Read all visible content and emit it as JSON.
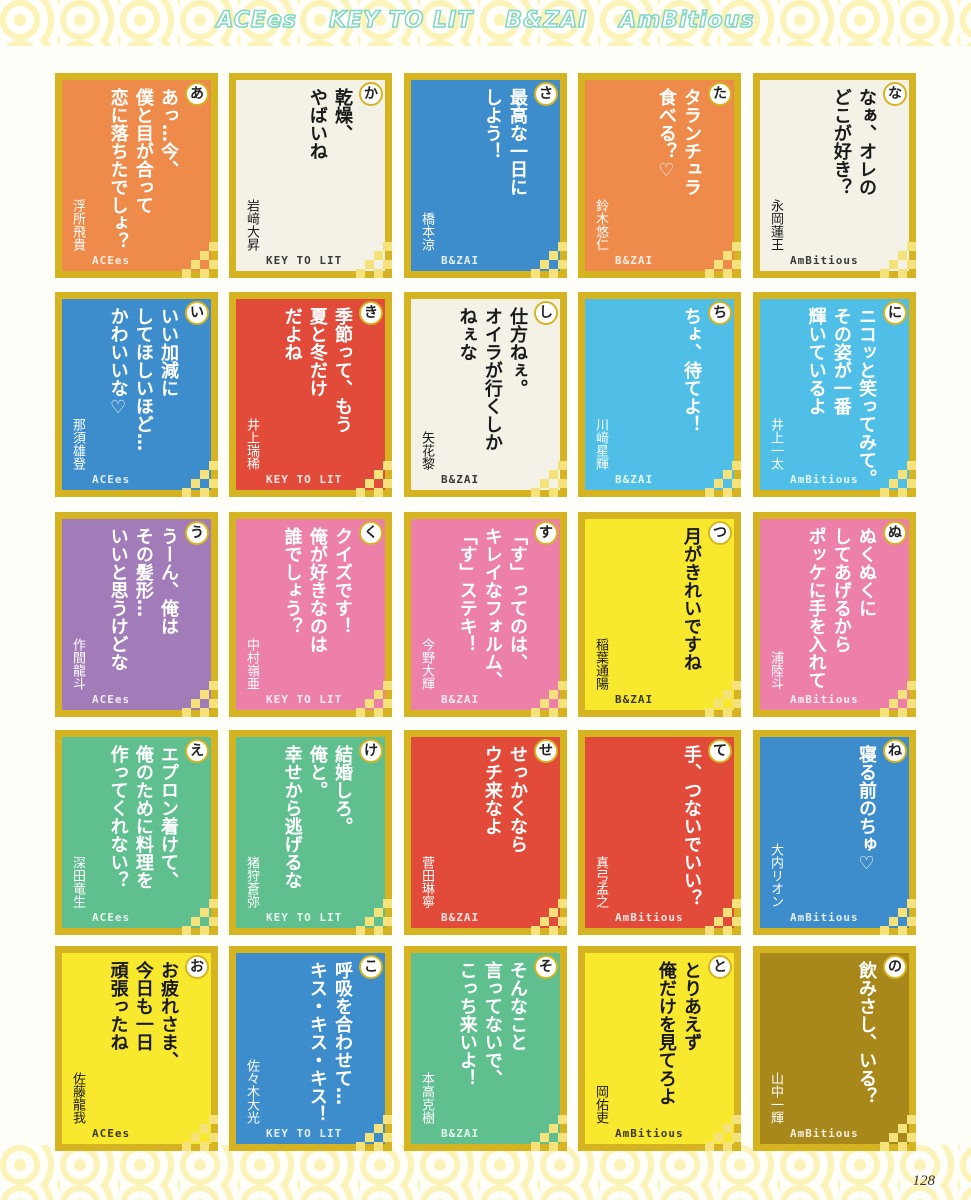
{
  "header": {
    "groups": [
      "ACEes",
      "KEY TO LIT",
      "B&ZAI",
      "AmBitious"
    ]
  },
  "cards": [
    {
      "kana": "あ",
      "lines": [
        "あっ…今、",
        "僕と目が合って",
        "恋に落ちたでしょ？"
      ],
      "name": "浮所飛貴",
      "group": "ACEes",
      "bg": "#ee8a4a",
      "ink": "#ffffff"
    },
    {
      "kana": "か",
      "lines": [
        "乾燥、",
        "やばいね"
      ],
      "name": "岩﨑大昇",
      "group": "KEY TO LIT",
      "bg": "#f4f1e6",
      "ink": "#1a1a1a"
    },
    {
      "kana": "さ",
      "lines": [
        "最高な一日に",
        "しよう！"
      ],
      "name": "橋本涼",
      "group": "B&ZAI",
      "bg": "#3d8dcc",
      "ink": "#ffffff"
    },
    {
      "kana": "た",
      "lines": [
        "タランチュラ",
        "食べる？♡"
      ],
      "name": "鈴木悠仁",
      "group": "B&ZAI",
      "bg": "#ee8a4a",
      "ink": "#ffffff"
    },
    {
      "kana": "な",
      "lines": [
        "なぁ、オレの",
        "どこが好き？"
      ],
      "name": "永岡蓮王",
      "group": "AmBitious",
      "bg": "#f4f1e6",
      "ink": "#1a1a1a"
    },
    {
      "kana": "い",
      "lines": [
        "いい加減に",
        "してほしいほど…",
        "かわいいな♡"
      ],
      "name": "那須雄登",
      "group": "ACEes",
      "bg": "#3d8dcc",
      "ink": "#ffffff"
    },
    {
      "kana": "き",
      "lines": [
        "季節って、もう",
        "夏と冬だけ",
        "だよね"
      ],
      "name": "井上瑞稀",
      "group": "KEY TO LIT",
      "bg": "#e24b3a",
      "ink": "#ffffff"
    },
    {
      "kana": "し",
      "lines": [
        "仕方ねぇ。",
        "オイラが行くしか",
        "ねぇな"
      ],
      "name": "矢花黎",
      "group": "B&ZAI",
      "bg": "#f4f1e6",
      "ink": "#1a1a1a"
    },
    {
      "kana": "ち",
      "lines": [
        "ちょ、待てよ！"
      ],
      "name": "川﨑星輝",
      "group": "B&ZAI",
      "bg": "#4fbfe8",
      "ink": "#ffffff"
    },
    {
      "kana": "に",
      "lines": [
        "ニコッと笑ってみて。",
        "その姿が一番",
        "輝いているよ"
      ],
      "name": "井上一太",
      "group": "AmBitious",
      "bg": "#4fbfe8",
      "ink": "#ffffff"
    },
    {
      "kana": "う",
      "lines": [
        "うーん、俺は",
        "その髪形…",
        "いいと思うけどな"
      ],
      "name": "作間龍斗",
      "group": "ACEes",
      "bg": "#a27bb9",
      "ink": "#ffffff"
    },
    {
      "kana": "く",
      "lines": [
        "クイズです！",
        "俺が好きなのは",
        "誰でしょう？"
      ],
      "name": "中村嶺亜",
      "group": "KEY TO LIT",
      "bg": "#ec80a8",
      "ink": "#ffffff"
    },
    {
      "kana": "す",
      "lines": [
        "「す」ってのは、",
        "キレイなフォルム、",
        "「す」ステキ！"
      ],
      "name": "今野大輝",
      "group": "B&ZAI",
      "bg": "#ec80a8",
      "ink": "#ffffff"
    },
    {
      "kana": "つ",
      "lines": [
        "月がきれいですね"
      ],
      "name": "稲葉通陽",
      "group": "B&ZAI",
      "bg": "#f9e92e",
      "ink": "#1a1a1a"
    },
    {
      "kana": "ぬ",
      "lines": [
        "ぬくぬくに",
        "してあげるから",
        "ポッケに手を入れて"
      ],
      "name": "浦陸斗",
      "group": "AmBitious",
      "bg": "#ec80a8",
      "ink": "#ffffff"
    },
    {
      "kana": "え",
      "lines": [
        "エプロン着けて、",
        "俺のために料理を",
        "作ってくれない？"
      ],
      "name": "深田竜生",
      "group": "ACEes",
      "bg": "#5fbf8f",
      "ink": "#ffffff"
    },
    {
      "kana": "け",
      "lines": [
        "結婚しろ。",
        "俺と。",
        "幸せから逃げるな"
      ],
      "name": "猪狩蒼弥",
      "group": "KEY TO LIT",
      "bg": "#5fbf8f",
      "ink": "#ffffff"
    },
    {
      "kana": "せ",
      "lines": [
        "せっかくなら",
        "ウチ来なよ"
      ],
      "name": "菅田琳寧",
      "group": "B&ZAI",
      "bg": "#e24b3a",
      "ink": "#ffffff"
    },
    {
      "kana": "て",
      "lines": [
        "手、つないでいい？"
      ],
      "name": "真弓孟之",
      "group": "AmBitious",
      "bg": "#e24b3a",
      "ink": "#ffffff"
    },
    {
      "kana": "ね",
      "lines": [
        "寝る前のちゅ♡"
      ],
      "name": "大内リオン",
      "group": "AmBitious",
      "bg": "#3d8dcc",
      "ink": "#ffffff"
    },
    {
      "kana": "お",
      "lines": [
        "お疲れさま、",
        "今日も一日",
        "頑張ったね"
      ],
      "name": "佐藤龍我",
      "group": "ACEes",
      "bg": "#f9e92e",
      "ink": "#1a1a1a"
    },
    {
      "kana": "こ",
      "lines": [
        "呼吸を合わせて…",
        "キス・キス・キス！"
      ],
      "name": "佐々木大光",
      "group": "KEY TO LIT",
      "bg": "#3d8dcc",
      "ink": "#ffffff"
    },
    {
      "kana": "そ",
      "lines": [
        "そんなこと",
        "言ってないで、",
        "こっち来いよ！"
      ],
      "name": "本高克樹",
      "group": "B&ZAI",
      "bg": "#5fbf8f",
      "ink": "#ffffff"
    },
    {
      "kana": "と",
      "lines": [
        "とりあえず",
        "俺だけを見てろよ"
      ],
      "name": "岡佑吏",
      "group": "AmBitious",
      "bg": "#f9e92e",
      "ink": "#1a1a1a"
    },
    {
      "kana": "の",
      "lines": [
        "飲みさし、いる？"
      ],
      "name": "山中一輝",
      "group": "AmBitious",
      "bg": "#a8871b",
      "ink": "#ffffff"
    }
  ],
  "page_number": "128"
}
